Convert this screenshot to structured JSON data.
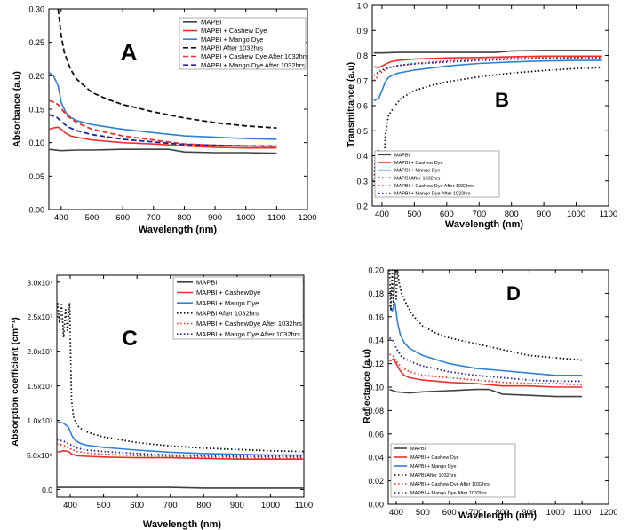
{
  "chart_data": [
    {
      "id": "A",
      "type": "line",
      "panel_letter": "A",
      "xlabel": "Wavelength (nm)",
      "ylabel": "Absorbance (a.u)",
      "xlim": [
        360,
        1200
      ],
      "ylim": [
        0,
        0.3
      ],
      "x_ticks": [
        400,
        500,
        600,
        700,
        800,
        900,
        1000,
        1100,
        1200
      ],
      "y_ticks": [
        0.0,
        0.05,
        0.1,
        0.15,
        0.2,
        0.25,
        0.3
      ],
      "x_tick_labels": [
        "400",
        "500",
        "600",
        "700",
        "800",
        "900",
        "1000",
        "1100",
        "1200"
      ],
      "y_tick_labels": [
        "0.00",
        "0.05",
        "0.10",
        "0.15",
        "0.20",
        "0.25",
        "0.30"
      ],
      "legend_position": "top-right",
      "series": [
        {
          "name": "MAPBI",
          "color": "#404040",
          "style": "solid",
          "x": [
            360,
            400,
            450,
            500,
            600,
            700,
            750,
            800,
            900,
            1000,
            1100
          ],
          "y": [
            0.09,
            0.088,
            0.089,
            0.089,
            0.09,
            0.09,
            0.09,
            0.086,
            0.085,
            0.085,
            0.084
          ]
        },
        {
          "name": "MAPBI + Cashew Dye",
          "color": "#e8312c",
          "style": "solid",
          "x": [
            360,
            375,
            390,
            400,
            415,
            430,
            450,
            500,
            600,
            700,
            800,
            900,
            1000,
            1100
          ],
          "y": [
            0.12,
            0.122,
            0.123,
            0.12,
            0.114,
            0.11,
            0.108,
            0.104,
            0.1,
            0.098,
            0.095,
            0.093,
            0.092,
            0.092
          ]
        },
        {
          "name": "MAPBI + Mango Dye",
          "color": "#2f7fd3",
          "style": "solid",
          "x": [
            360,
            375,
            390,
            400,
            415,
            430,
            450,
            500,
            600,
            700,
            800,
            900,
            1000,
            1100
          ],
          "y": [
            0.205,
            0.2,
            0.185,
            0.16,
            0.145,
            0.138,
            0.133,
            0.127,
            0.12,
            0.115,
            0.11,
            0.108,
            0.106,
            0.105
          ]
        },
        {
          "name": "MAPBI After 1032hrs",
          "color": "#111111",
          "style": "dashed",
          "x": [
            390,
            400,
            410,
            430,
            450,
            500,
            550,
            600,
            700,
            800,
            900,
            1000,
            1100
          ],
          "y": [
            0.3,
            0.26,
            0.235,
            0.21,
            0.195,
            0.175,
            0.165,
            0.157,
            0.146,
            0.137,
            0.13,
            0.125,
            0.122
          ]
        },
        {
          "name": "MAPBI + Cashew Dye After 1032hrs",
          "color": "#e8312c",
          "style": "dashed",
          "x": [
            360,
            380,
            395,
            405,
            420,
            450,
            500,
            600,
            700,
            800,
            900,
            1000,
            1100
          ],
          "y": [
            0.163,
            0.16,
            0.155,
            0.148,
            0.14,
            0.13,
            0.12,
            0.11,
            0.104,
            0.098,
            0.096,
            0.095,
            0.094
          ]
        },
        {
          "name": "MAPBI + Mango Dye After 1032hrs",
          "color": "#2020a0",
          "style": "dashed",
          "x": [
            360,
            385,
            400,
            420,
            450,
            500,
            600,
            700,
            800,
            900,
            1000,
            1100
          ],
          "y": [
            0.142,
            0.138,
            0.132,
            0.124,
            0.118,
            0.112,
            0.105,
            0.101,
            0.097,
            0.096,
            0.095,
            0.095
          ]
        }
      ]
    },
    {
      "id": "B",
      "type": "line",
      "panel_letter": "B",
      "xlabel": "Wavelength (nm)",
      "ylabel": "Transmittance (a.u)",
      "xlim": [
        370,
        1100
      ],
      "ylim": [
        0.2,
        1.0
      ],
      "x_ticks": [
        400,
        500,
        600,
        700,
        800,
        900,
        1000,
        1100
      ],
      "y_ticks": [
        0.2,
        0.3,
        0.4,
        0.5,
        0.6,
        0.7,
        0.8,
        0.9,
        1.0
      ],
      "x_tick_labels": [
        "400",
        "500",
        "600",
        "700",
        "800",
        "900",
        "1000",
        "1100"
      ],
      "y_tick_labels": [
        "0.2",
        "0.3",
        "0.4",
        "0.5",
        "0.6",
        "0.7",
        "0.8",
        "0.9",
        "1.0"
      ],
      "legend_position": "bottom-left",
      "series": [
        {
          "name": "MAPBI",
          "color": "#404040",
          "style": "solid",
          "x": [
            375,
            400,
            450,
            500,
            600,
            700,
            750,
            800,
            900,
            1000,
            1080
          ],
          "y": [
            0.81,
            0.81,
            0.812,
            0.812,
            0.812,
            0.812,
            0.812,
            0.818,
            0.82,
            0.82,
            0.82
          ]
        },
        {
          "name": "MAPBI + Cashew Dye",
          "color": "#e8312c",
          "style": "solid",
          "x": [
            375,
            390,
            400,
            415,
            430,
            450,
            500,
            600,
            700,
            800,
            900,
            1000,
            1080
          ],
          "y": [
            0.755,
            0.752,
            0.758,
            0.768,
            0.776,
            0.78,
            0.786,
            0.79,
            0.792,
            0.795,
            0.797,
            0.797,
            0.797
          ]
        },
        {
          "name": "MAPBI + Mango Dye",
          "color": "#2f7fd3",
          "style": "solid",
          "x": [
            375,
            390,
            400,
            410,
            420,
            430,
            450,
            500,
            600,
            700,
            800,
            900,
            1000,
            1080
          ],
          "y": [
            0.62,
            0.63,
            0.66,
            0.695,
            0.712,
            0.72,
            0.73,
            0.742,
            0.758,
            0.768,
            0.774,
            0.778,
            0.78,
            0.78
          ]
        },
        {
          "name": "MAPBI After 1032hrs",
          "color": "#111111",
          "style": "dotted",
          "x": [
            375,
            380,
            385,
            390,
            395,
            400,
            405,
            410,
            420,
            440,
            460,
            500,
            550,
            600,
            700,
            800,
            900,
            1000,
            1080
          ],
          "y": [
            0.28,
            0.4,
            0.27,
            0.42,
            0.26,
            0.39,
            0.26,
            0.48,
            0.56,
            0.6,
            0.63,
            0.66,
            0.68,
            0.695,
            0.715,
            0.73,
            0.74,
            0.748,
            0.752
          ]
        },
        {
          "name": "MAPBI + Cashew Dye After 1032hrs",
          "color": "#e8312c",
          "style": "dotted",
          "x": [
            375,
            390,
            400,
            420,
            450,
            500,
            600,
            700,
            800,
            900,
            1000,
            1080
          ],
          "y": [
            0.7,
            0.72,
            0.735,
            0.75,
            0.76,
            0.768,
            0.778,
            0.785,
            0.79,
            0.792,
            0.794,
            0.795
          ]
        },
        {
          "name": "MAPBI + Mango Dye After 1032hrs",
          "color": "#2020a0",
          "style": "dotted",
          "x": [
            375,
            390,
            400,
            420,
            450,
            500,
            600,
            700,
            800,
            900,
            1000,
            1080
          ],
          "y": [
            0.72,
            0.735,
            0.742,
            0.752,
            0.76,
            0.766,
            0.774,
            0.78,
            0.785,
            0.788,
            0.79,
            0.79
          ]
        }
      ]
    },
    {
      "id": "C",
      "type": "line",
      "panel_letter": "C",
      "xlabel": "Wavelength (nm)",
      "ylabel": "Absorption coefficient (cm⁻¹)",
      "xlim": [
        360,
        1100
      ],
      "ylim": [
        -1100000.0,
        31000000.0
      ],
      "x_ticks": [
        400,
        500,
        600,
        700,
        800,
        900,
        1000,
        1100
      ],
      "y_ticks": [
        0,
        5000000.0,
        10000000.0,
        15000000.0,
        20000000.0,
        25000000.0,
        30000000.0
      ],
      "x_tick_labels": [
        "400",
        "500",
        "600",
        "700",
        "800",
        "900",
        "1000",
        "1100"
      ],
      "y_tick_labels": [
        "0.0",
        "5.0x10⁶",
        "1.0x10⁷",
        "1.5x10⁷",
        "2.0x10⁷",
        "2.5x10⁷",
        "3.0x10⁷"
      ],
      "legend_position": "top-right",
      "series": [
        {
          "name": "MAPBI",
          "color": "#404040",
          "style": "solid",
          "x": [
            360,
            400,
            500,
            600,
            700,
            800,
            900,
            1000,
            1100
          ],
          "y": [
            300000.0,
            300000.0,
            300000.0,
            300000.0,
            300000.0,
            200000.0,
            200000.0,
            200000.0,
            200000.0
          ]
        },
        {
          "name": "MAPBI + CashewDye",
          "color": "#e8312c",
          "style": "solid",
          "x": [
            360,
            380,
            395,
            405,
            420,
            450,
            500,
            600,
            700,
            800,
            900,
            1000,
            1100
          ],
          "y": [
            5400000.0,
            5600000.0,
            5500000.0,
            5100000.0,
            4900000.0,
            4800000.0,
            4700000.0,
            4600000.0,
            4600000.0,
            4500000.0,
            4400000.0,
            4400000.0,
            4400000.0
          ]
        },
        {
          "name": "MAPBI + Mango Dye",
          "color": "#2f7fd3",
          "style": "solid",
          "x": [
            360,
            380,
            395,
            405,
            415,
            430,
            450,
            500,
            600,
            700,
            800,
            900,
            1000,
            1100
          ],
          "y": [
            9800000.0,
            9600000.0,
            9000000.0,
            7800000.0,
            7100000.0,
            6700000.0,
            6400000.0,
            6100000.0,
            5700000.0,
            5400000.0,
            5200000.0,
            5100000.0,
            5000000.0,
            5000000.0
          ]
        },
        {
          "name": "MAPBI After 1032hrs",
          "color": "#111111",
          "style": "dotted",
          "x": [
            362,
            368,
            374,
            380,
            386,
            392,
            398,
            404,
            410,
            420,
            440,
            470,
            500,
            600,
            700,
            800,
            900,
            1000,
            1100
          ],
          "y": [
            27000000.0,
            24000000.0,
            27000000.0,
            22000000.0,
            26000000.0,
            23000000.0,
            27000000.0,
            13000000.0,
            10500000.0,
            9300000.0,
            8500000.0,
            8000000.0,
            7600000.0,
            6800000.0,
            6300000.0,
            6000000.0,
            5800000.0,
            5600000.0,
            5500000.0
          ]
        },
        {
          "name": "MAPBI + CashewDye After 1032hrs",
          "color": "#e8312c",
          "style": "dotted",
          "x": [
            360,
            380,
            400,
            420,
            450,
            500,
            600,
            700,
            800,
            900,
            1000,
            1100
          ],
          "y": [
            6600000.0,
            6400000.0,
            5900000.0,
            5500000.0,
            5300000.0,
            5100000.0,
            4900000.0,
            4800000.0,
            4700000.0,
            4600000.0,
            4600000.0,
            4600000.0
          ]
        },
        {
          "name": "MAPBI + Mango Dye After 1032hrs",
          "color": "#2020a0",
          "style": "dotted",
          "x": [
            360,
            380,
            400,
            420,
            450,
            500,
            600,
            700,
            800,
            900,
            1000,
            1100
          ],
          "y": [
            7200000.0,
            7000000.0,
            6500000.0,
            6000000.0,
            5700000.0,
            5500000.0,
            5200000.0,
            5000000.0,
            4900000.0,
            4800000.0,
            4800000.0,
            4800000.0
          ]
        }
      ]
    },
    {
      "id": "D",
      "type": "line",
      "panel_letter": "D",
      "xlabel": "Wavelength (nm)",
      "ylabel": "Reflectance (a.u)",
      "xlim": [
        370,
        1200
      ],
      "ylim": [
        0,
        0.2
      ],
      "x_ticks": [
        400,
        500,
        600,
        700,
        800,
        900,
        1000,
        1100,
        1200
      ],
      "y_ticks": [
        0.0,
        0.02,
        0.04,
        0.06,
        0.08,
        0.1,
        0.12,
        0.14,
        0.16,
        0.18,
        0.2
      ],
      "x_tick_labels": [
        "400",
        "500",
        "600",
        "700",
        "800",
        "900",
        "1000",
        "1100",
        "1200"
      ],
      "y_tick_labels": [
        "0.00",
        "0.02",
        "0.04",
        "0.06",
        "0.08",
        "0.10",
        "0.12",
        "0.14",
        "0.16",
        "0.18",
        "0.20"
      ],
      "legend_position": "bottom-left",
      "series": [
        {
          "name": "MAPBI",
          "color": "#404040",
          "style": "solid",
          "x": [
            375,
            400,
            450,
            500,
            600,
            700,
            750,
            800,
            900,
            1000,
            1100
          ],
          "y": [
            0.098,
            0.096,
            0.095,
            0.096,
            0.097,
            0.098,
            0.098,
            0.094,
            0.093,
            0.092,
            0.092
          ]
        },
        {
          "name": "MAPBI + Cashew Dye",
          "color": "#e8312c",
          "style": "solid",
          "x": [
            375,
            390,
            400,
            415,
            430,
            450,
            500,
            600,
            700,
            800,
            900,
            1000,
            1100
          ],
          "y": [
            0.122,
            0.124,
            0.12,
            0.114,
            0.11,
            0.108,
            0.106,
            0.104,
            0.103,
            0.101,
            0.101,
            0.1,
            0.1
          ]
        },
        {
          "name": "MAPBI + Mango Dye",
          "color": "#2f7fd3",
          "style": "solid",
          "x": [
            375,
            385,
            395,
            405,
            415,
            430,
            450,
            500,
            600,
            700,
            800,
            900,
            1000,
            1100
          ],
          "y": [
            0.17,
            0.165,
            0.172,
            0.155,
            0.145,
            0.138,
            0.133,
            0.127,
            0.12,
            0.116,
            0.114,
            0.112,
            0.11,
            0.11
          ]
        },
        {
          "name": "MAPBI After 1032hrs",
          "color": "#111111",
          "style": "dotted",
          "x": [
            375,
            380,
            385,
            390,
            395,
            400,
            405,
            410,
            420,
            440,
            460,
            500,
            550,
            600,
            700,
            800,
            900,
            1000,
            1100
          ],
          "y": [
            0.2,
            0.165,
            0.2,
            0.17,
            0.2,
            0.175,
            0.2,
            0.19,
            0.18,
            0.17,
            0.162,
            0.152,
            0.146,
            0.142,
            0.137,
            0.132,
            0.127,
            0.125,
            0.123
          ]
        },
        {
          "name": "MAPBI + Cashew Dye After 1032hrs",
          "color": "#e8312c",
          "style": "dotted",
          "x": [
            375,
            390,
            400,
            420,
            450,
            500,
            600,
            700,
            800,
            900,
            1000,
            1100
          ],
          "y": [
            0.128,
            0.126,
            0.122,
            0.117,
            0.113,
            0.11,
            0.108,
            0.106,
            0.104,
            0.103,
            0.103,
            0.102
          ]
        },
        {
          "name": "MAPBI + Mango Dye After 1032hrs",
          "color": "#2020a0",
          "style": "dotted",
          "x": [
            375,
            390,
            400,
            420,
            450,
            500,
            600,
            700,
            800,
            900,
            1000,
            1100
          ],
          "y": [
            0.142,
            0.139,
            0.133,
            0.126,
            0.122,
            0.118,
            0.113,
            0.11,
            0.108,
            0.106,
            0.105,
            0.105
          ]
        }
      ]
    }
  ]
}
